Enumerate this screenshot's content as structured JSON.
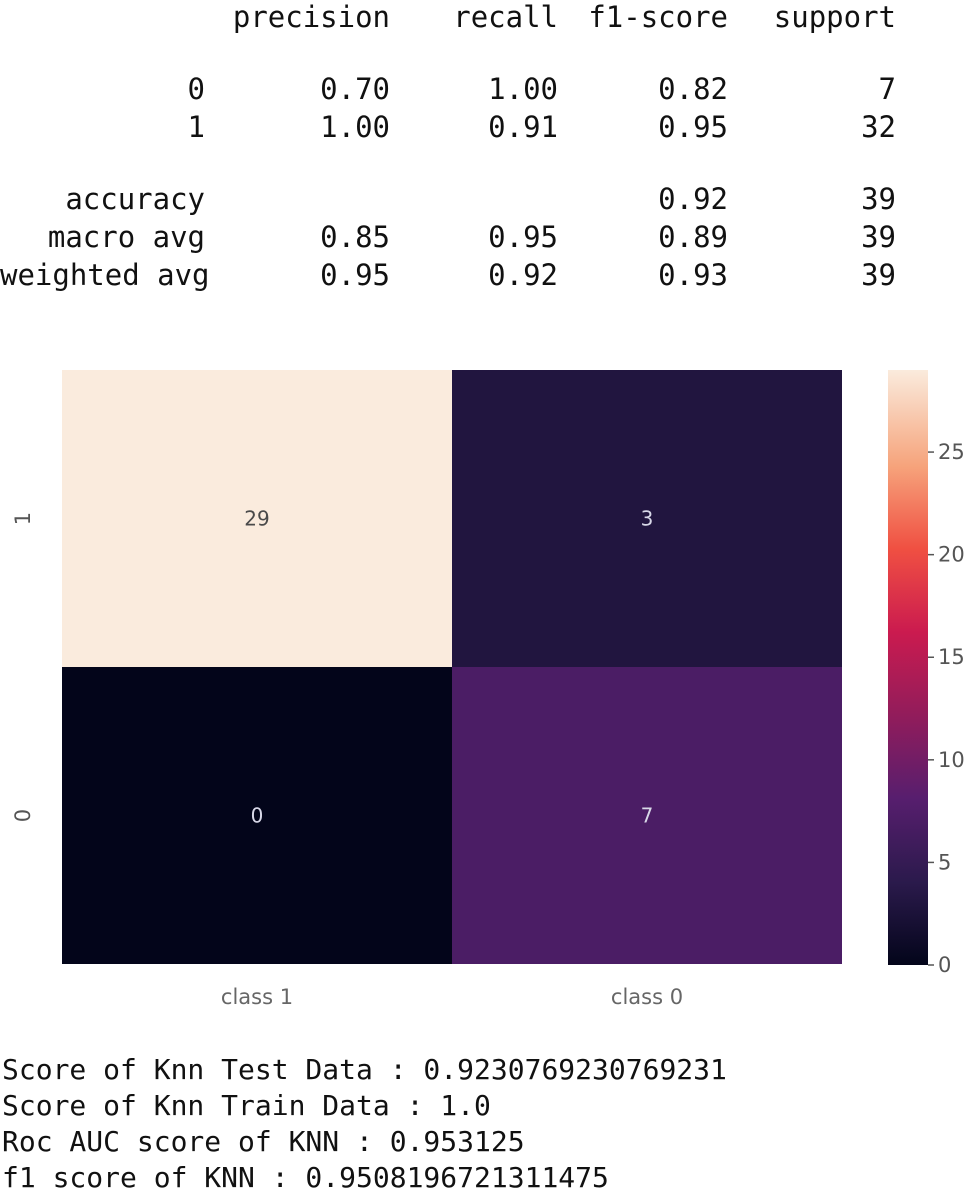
{
  "report": {
    "headers": [
      "precision",
      "recall",
      "f1-score",
      "support"
    ],
    "rows": [
      {
        "label": "0",
        "precision": "0.70",
        "recall": "1.00",
        "f1": "0.82",
        "support": "7"
      },
      {
        "label": "1",
        "precision": "1.00",
        "recall": "0.91",
        "f1": "0.95",
        "support": "32"
      },
      {
        "label": "accuracy",
        "precision": "",
        "recall": "",
        "f1": "0.92",
        "support": "39"
      },
      {
        "label": "macro avg",
        "precision": "0.85",
        "recall": "0.95",
        "f1": "0.89",
        "support": "39"
      },
      {
        "label": "weighted avg",
        "precision": "0.95",
        "recall": "0.92",
        "f1": "0.93",
        "support": "39"
      }
    ]
  },
  "chart_data": {
    "type": "heatmap",
    "title": "",
    "xlabel": "",
    "ylabel": "",
    "x_categories": [
      "class 1",
      "class 0"
    ],
    "y_categories": [
      "1",
      "0"
    ],
    "values": [
      [
        29,
        3
      ],
      [
        0,
        7
      ]
    ],
    "colormap": "rocket",
    "colorbar": {
      "min": 0,
      "max": 29,
      "ticks": [
        0,
        5,
        10,
        15,
        20,
        25
      ]
    },
    "grid": false,
    "legend": "none"
  },
  "scores": [
    "Score of Knn Test Data : 0.9230769230769231",
    "Score of Knn Train Data : 1.0",
    "Roc AUC score of KNN : 0.953125",
    "f1 score of KNN : 0.9508196721311475"
  ]
}
